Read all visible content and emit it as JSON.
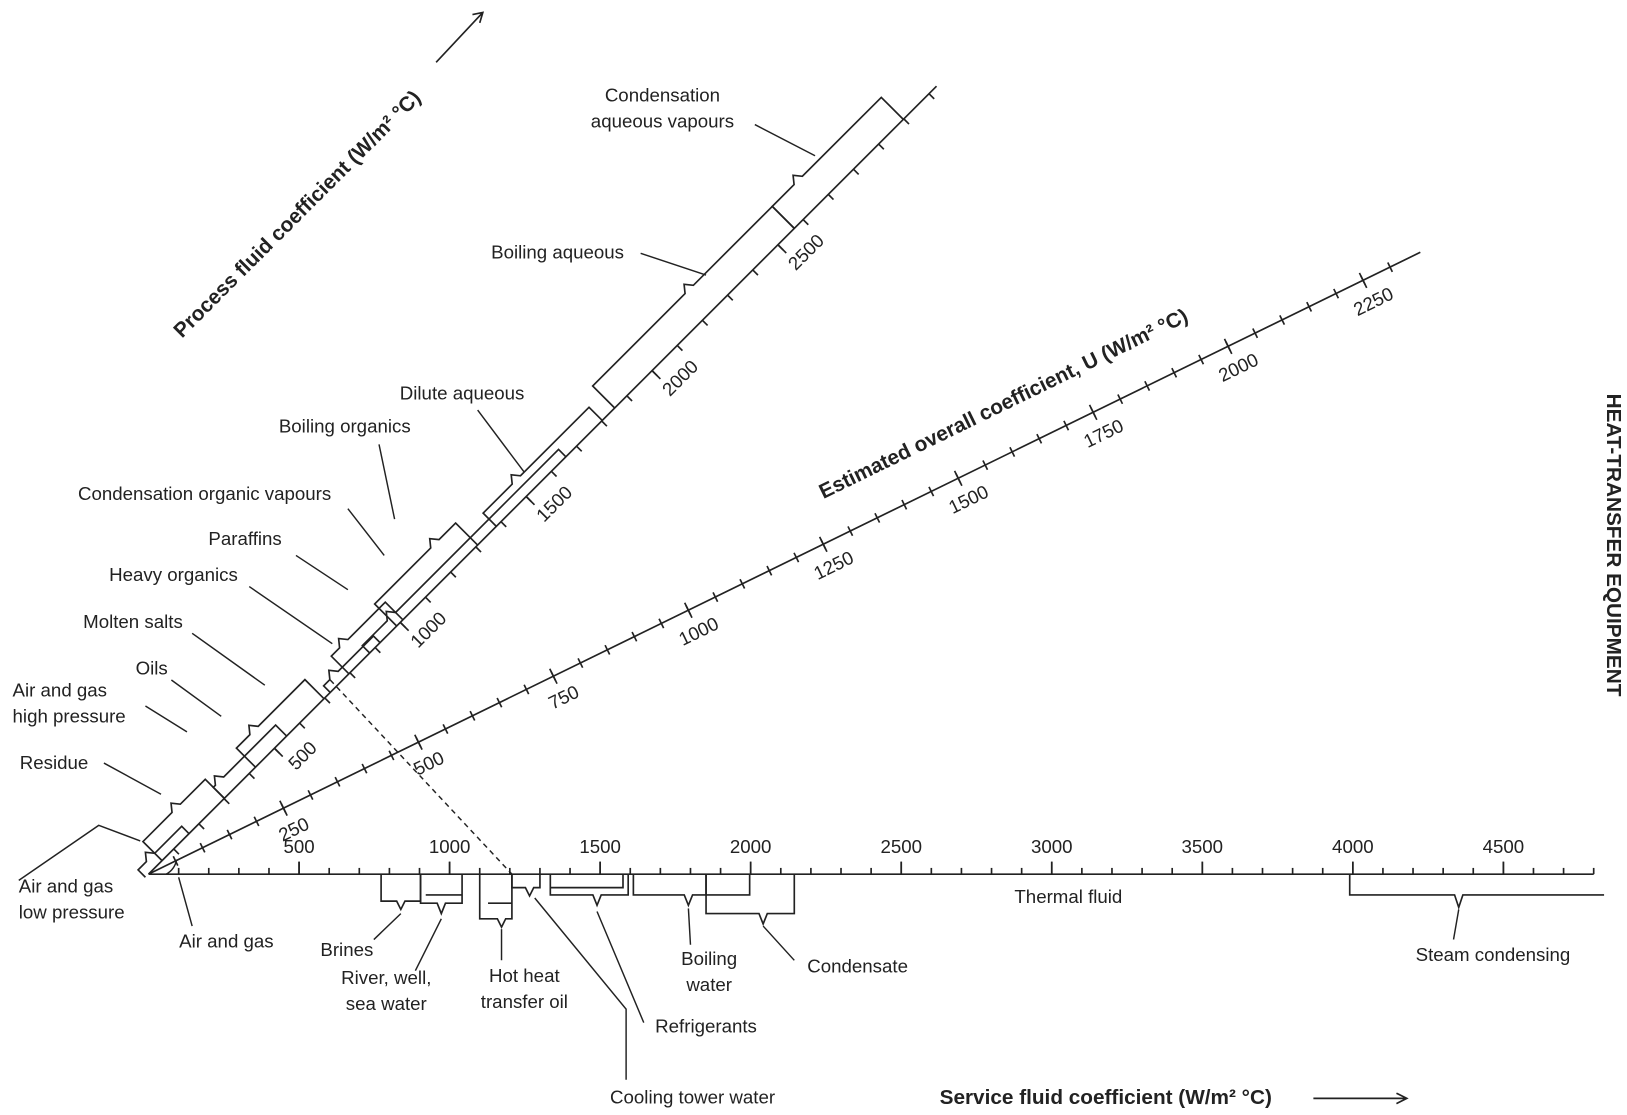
{
  "side_title": "HEAT-TRANSFER EQUIPMENT",
  "process_axis": {
    "title": "Process fluid coefficient (W/m² °C)",
    "ticks": [
      500,
      1000,
      1500,
      2000,
      2500
    ]
  },
  "overall_axis": {
    "title": "Estimated overall coefficient, U (W/m² °C)",
    "ticks": [
      250,
      500,
      750,
      1000,
      1250,
      1500,
      1750,
      2000,
      2250
    ]
  },
  "service_axis": {
    "title": "Service fluid coefficient (W/m² °C)",
    "ticks": [
      500,
      1000,
      1500,
      2000,
      2500,
      3000,
      3500,
      4000,
      4500
    ]
  },
  "process_fluids": [
    {
      "label": [
        "Condensation",
        "aqueous vapours"
      ]
    },
    {
      "label": [
        "Boiling aqueous"
      ]
    },
    {
      "label": [
        "Dilute aqueous"
      ]
    },
    {
      "label": [
        "Boiling organics"
      ]
    },
    {
      "label": [
        "Condensation organic vapours"
      ]
    },
    {
      "label": [
        "Paraffins"
      ]
    },
    {
      "label": [
        "Heavy organics"
      ]
    },
    {
      "label": [
        "Molten salts"
      ]
    },
    {
      "label": [
        "Oils"
      ]
    },
    {
      "label": [
        "Air and gas",
        "high pressure"
      ]
    },
    {
      "label": [
        "Residue"
      ]
    },
    {
      "label": [
        "Air and gas",
        "low pressure"
      ]
    }
  ],
  "service_fluids": [
    {
      "label": [
        "Air and gas"
      ]
    },
    {
      "label": [
        "Brines"
      ]
    },
    {
      "label": [
        "River, well,",
        "sea water"
      ]
    },
    {
      "label": [
        "Hot heat",
        "transfer oil"
      ]
    },
    {
      "label": [
        "Cooling tower water"
      ]
    },
    {
      "label": [
        "Refrigerants"
      ]
    },
    {
      "label": [
        "Boiling",
        "water"
      ]
    },
    {
      "label": [
        "Condensate"
      ]
    },
    {
      "label": [
        "Thermal fluid"
      ]
    },
    {
      "label": [
        "Steam condensing"
      ]
    }
  ]
}
